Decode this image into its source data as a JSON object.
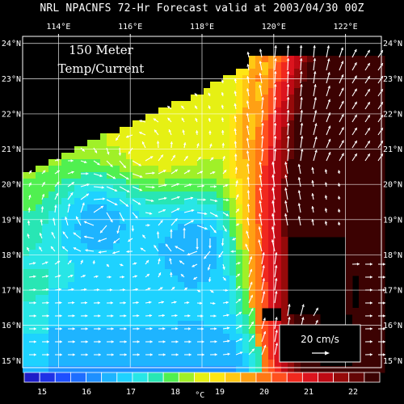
{
  "title": "NRL NPACNFS 72-Hr Forecast valid at 2003/04/30 00Z",
  "panel_label_line1": "150 Meter",
  "panel_label_line2": "Temp/Current",
  "lon_ticks": [
    "114°E",
    "116°E",
    "118°E",
    "120°E",
    "122°E"
  ],
  "lat_ticks": [
    "24°N",
    "23°N",
    "22°N",
    "21°N",
    "20°N",
    "19°N",
    "18°N",
    "17°N",
    "16°N",
    "15°N"
  ],
  "scale_vector": {
    "label": "20 cm/s"
  },
  "colorbar": {
    "ticks": [
      "15",
      "16",
      "17",
      "18",
      "19",
      "20",
      "21",
      "22"
    ],
    "unit": "°C",
    "colors": [
      "#1e1ec8",
      "#1e32e6",
      "#1e50ff",
      "#1e6eff",
      "#1e90ff",
      "#1eb4ff",
      "#1ed2ff",
      "#28e6e6",
      "#28e6b4",
      "#50f050",
      "#a0f028",
      "#e6f014",
      "#ffe614",
      "#ffc814",
      "#ffa014",
      "#ff7814",
      "#ff501e",
      "#f0281e",
      "#dc141e",
      "#be0a14",
      "#960a0a",
      "#640505",
      "#3c0202"
    ]
  },
  "chart_data": {
    "type": "heatmap",
    "title": "NRL NPACNFS 72-Hr Forecast valid at 2003/04/30 00Z",
    "variable": "150 Meter Temp/Current",
    "unit": "°C",
    "x_range": [
      113,
      123
    ],
    "y_range": [
      14.8,
      24.2
    ],
    "color_range": [
      14.6,
      22.6
    ]
  }
}
